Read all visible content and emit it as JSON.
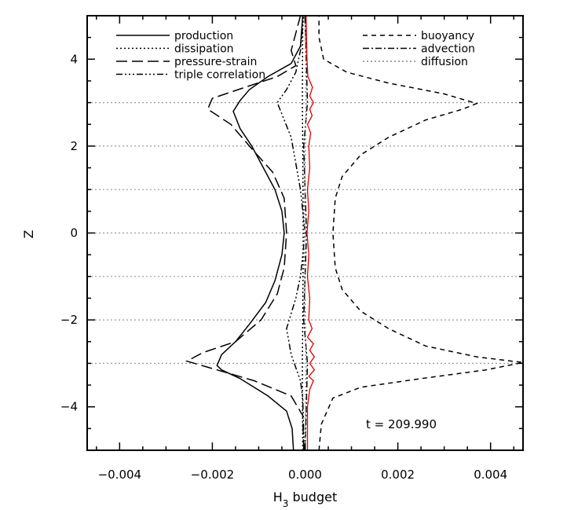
{
  "chart_data": {
    "type": "line",
    "title": "",
    "xlabel": "H",
    "xlabel_sub": "3",
    "xlabel_suffix": " budget",
    "ylabel": "Z",
    "xlim": [
      -0.0047,
      0.0047
    ],
    "ylim": [
      -5,
      5
    ],
    "xticks": [
      -0.004,
      -0.002,
      0.0,
      0.002,
      0.004
    ],
    "xtick_labels": [
      "−0.004",
      "−0.002",
      "0.000",
      "0.002",
      "0.004"
    ],
    "yticks": [
      -4,
      -2,
      0,
      2,
      4
    ],
    "ytick_labels": [
      "−4",
      "−2",
      "0",
      "2",
      "4"
    ],
    "grid": "dotted horizontal lines at z = -3, -2, -1, 0, 1, 2, 3",
    "gridlines_y": [
      -3,
      -2,
      -1,
      0,
      1,
      2,
      3
    ],
    "annotation": "t = 209.990",
    "legend_placement": "top (two columns)",
    "series": [
      {
        "name": "production",
        "style": "solid",
        "color": "#000000",
        "points": [
          [
            -0.00025,
            -5.0
          ],
          [
            -0.00028,
            -4.5
          ],
          [
            -0.0004,
            -4.1
          ],
          [
            -0.0008,
            -3.75
          ],
          [
            -0.0014,
            -3.35
          ],
          [
            -0.0018,
            -3.15
          ],
          [
            -0.0019,
            -3.05
          ],
          [
            -0.0018,
            -2.8
          ],
          [
            -0.0015,
            -2.5
          ],
          [
            -0.0012,
            -2.1
          ],
          [
            -0.00085,
            -1.6
          ],
          [
            -0.00065,
            -1.1
          ],
          [
            -0.0005,
            -0.5
          ],
          [
            -0.00045,
            0.0
          ],
          [
            -0.0005,
            0.5
          ],
          [
            -0.00065,
            1.0
          ],
          [
            -0.0009,
            1.5
          ],
          [
            -0.00115,
            2.0
          ],
          [
            -0.0014,
            2.4
          ],
          [
            -0.00155,
            2.8
          ],
          [
            -0.0014,
            3.05
          ],
          [
            -0.0012,
            3.3
          ],
          [
            -0.0008,
            3.6
          ],
          [
            -0.0003,
            3.9
          ],
          [
            -0.0001,
            4.3
          ],
          [
            -5e-05,
            5.0
          ]
        ]
      },
      {
        "name": "dissipation",
        "style": "dotted",
        "color": "#000000",
        "points": [
          [
            -5e-05,
            -5.0
          ],
          [
            -6e-05,
            -3.0
          ],
          [
            -5e-05,
            -2.0
          ],
          [
            -4e-05,
            0.0
          ],
          [
            -5e-05,
            2.0
          ],
          [
            -6e-05,
            3.0
          ],
          [
            -5e-05,
            5.0
          ]
        ]
      },
      {
        "name": "pressure-strain",
        "style": "longdash",
        "color": "#000000",
        "points": [
          [
            -3e-05,
            -5.0
          ],
          [
            -5e-05,
            -4.2
          ],
          [
            -0.0003,
            -3.75
          ],
          [
            -0.0011,
            -3.4
          ],
          [
            -0.0019,
            -3.15
          ],
          [
            -0.00255,
            -2.95
          ],
          [
            -0.0022,
            -2.75
          ],
          [
            -0.0015,
            -2.5
          ],
          [
            -0.00095,
            -2.0
          ],
          [
            -0.0006,
            -1.4
          ],
          [
            -0.00045,
            -0.8
          ],
          [
            -0.0004,
            0.0
          ],
          [
            -0.00045,
            0.8
          ],
          [
            -0.0007,
            1.4
          ],
          [
            -0.0012,
            2.0
          ],
          [
            -0.0016,
            2.5
          ],
          [
            -0.0021,
            2.85
          ],
          [
            -0.002,
            3.1
          ],
          [
            -0.0013,
            3.35
          ],
          [
            -0.0006,
            3.6
          ],
          [
            -0.0002,
            3.85
          ],
          [
            -0.0003,
            4.2
          ],
          [
            -0.0001,
            5.0
          ]
        ]
      },
      {
        "name": "triple correlation",
        "style": "dashdotdotdot",
        "color": "#000000",
        "points": [
          [
            -2e-05,
            -5.0
          ],
          [
            -5e-05,
            -3.8
          ],
          [
            -0.0001,
            -3.4
          ],
          [
            -0.0003,
            -2.8
          ],
          [
            -0.0004,
            -2.2
          ],
          [
            -0.0002,
            -1.5
          ],
          [
            -0.0001,
            -1.0
          ],
          [
            0.0,
            0.0
          ],
          [
            -0.0001,
            1.0
          ],
          [
            -0.0003,
            2.2
          ],
          [
            -0.0006,
            3.0
          ],
          [
            -0.0004,
            3.3
          ],
          [
            -0.0002,
            3.7
          ],
          [
            -0.0001,
            4.2
          ],
          [
            -3e-05,
            5.0
          ]
        ]
      },
      {
        "name": "buoyancy",
        "style": "shortdash",
        "color": "#000000",
        "points": [
          [
            0.0003,
            -5.0
          ],
          [
            0.00035,
            -4.4
          ],
          [
            0.0006,
            -3.8
          ],
          [
            0.0012,
            -3.55
          ],
          [
            0.0025,
            -3.35
          ],
          [
            0.0039,
            -3.15
          ],
          [
            0.0047,
            -2.98
          ],
          [
            0.0037,
            -2.85
          ],
          [
            0.0026,
            -2.6
          ],
          [
            0.0018,
            -2.2
          ],
          [
            0.0012,
            -1.8
          ],
          [
            0.0008,
            -1.3
          ],
          [
            0.00065,
            -0.8
          ],
          [
            0.0006,
            0.0
          ],
          [
            0.00065,
            0.8
          ],
          [
            0.0008,
            1.3
          ],
          [
            0.0012,
            1.8
          ],
          [
            0.0018,
            2.2
          ],
          [
            0.0026,
            2.6
          ],
          [
            0.0034,
            2.85
          ],
          [
            0.0037,
            2.98
          ],
          [
            0.003,
            3.2
          ],
          [
            0.0018,
            3.45
          ],
          [
            0.0009,
            3.7
          ],
          [
            0.0004,
            4.0
          ],
          [
            0.0003,
            4.5
          ],
          [
            0.0003,
            5.0
          ]
        ]
      },
      {
        "name": "advection",
        "style": "dashdot",
        "color": "#000000",
        "points": [
          [
            0.0,
            -5.0
          ],
          [
            5e-05,
            -3.0
          ],
          [
            -3e-05,
            -2.0
          ],
          [
            3e-05,
            0.0
          ],
          [
            -3e-05,
            2.0
          ],
          [
            5e-05,
            3.0
          ],
          [
            0.0,
            5.0
          ]
        ]
      },
      {
        "name": "diffusion",
        "style": "dotted-gray",
        "color": "#888888",
        "points": [
          [
            0.0,
            -5.0
          ],
          [
            2e-05,
            -3.0
          ],
          [
            -2e-05,
            0.0
          ],
          [
            2e-05,
            3.0
          ],
          [
            0.0,
            5.0
          ]
        ]
      },
      {
        "name": "",
        "style": "solid",
        "color": "#e00000",
        "points": [
          [
            5e-05,
            -5.0
          ],
          [
            5e-05,
            -4.0
          ],
          [
            0.0001,
            -3.6
          ],
          [
            0.00018,
            -3.4
          ],
          [
            8e-05,
            -3.3
          ],
          [
            0.0002,
            -3.15
          ],
          [
            0.0001,
            -3.0
          ],
          [
            0.0002,
            -2.85
          ],
          [
            0.0001,
            -2.7
          ],
          [
            0.00018,
            -2.55
          ],
          [
            5e-05,
            -2.4
          ],
          [
            0.00015,
            -2.2
          ],
          [
            8e-05,
            -2.0
          ],
          [
            0.0001,
            -1.5
          ],
          [
            5e-05,
            -1.0
          ],
          [
            8e-05,
            -0.5
          ],
          [
            4e-05,
            0.0
          ],
          [
            8e-05,
            0.5
          ],
          [
            5e-05,
            1.0
          ],
          [
            0.0001,
            1.5
          ],
          [
            8e-05,
            2.0
          ],
          [
            0.00012,
            2.3
          ],
          [
            5e-05,
            2.5
          ],
          [
            0.00015,
            2.7
          ],
          [
            0.0001,
            2.85
          ],
          [
            0.00018,
            3.0
          ],
          [
            0.0001,
            3.15
          ],
          [
            0.00016,
            3.35
          ],
          [
            6e-05,
            3.6
          ],
          [
            4e-05,
            4.0
          ],
          [
            2e-05,
            5.0
          ]
        ]
      }
    ]
  }
}
